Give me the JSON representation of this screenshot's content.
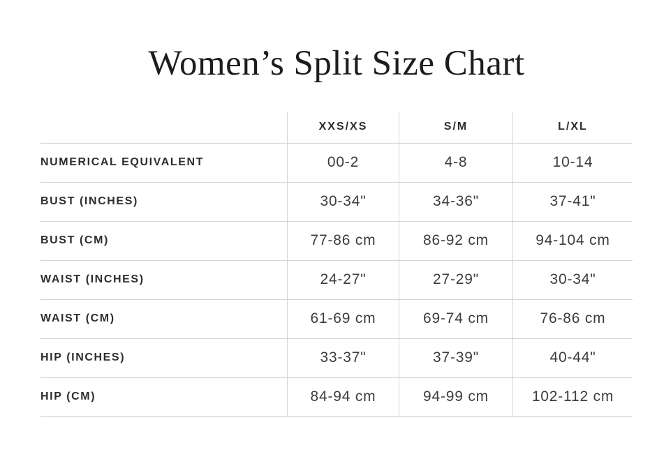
{
  "title": "Women’s Split Size Chart",
  "chart_data": {
    "type": "table",
    "title": "Women’s Split Size Chart",
    "column_headers": [
      "XXS/XS",
      "S/M",
      "L/XL"
    ],
    "row_labels": [
      "NUMERICAL EQUIVALENT",
      "BUST (INCHES)",
      "BUST (CM)",
      "WAIST (INCHES)",
      "WAIST (CM)",
      "HIP (INCHES)",
      "HIP (CM)"
    ],
    "rows": [
      [
        "00-2",
        "4-8",
        "10-14"
      ],
      [
        "30-34\"",
        "34-36\"",
        "37-41\""
      ],
      [
        "77-86 cm",
        "86-92 cm",
        "94-104 cm"
      ],
      [
        "24-27\"",
        "27-29\"",
        "30-34\""
      ],
      [
        "61-69 cm",
        "69-74 cm",
        "76-86 cm"
      ],
      [
        "33-37\"",
        "37-39\"",
        "40-44\""
      ],
      [
        "84-94 cm",
        "94-99 cm",
        "102-112 cm"
      ]
    ],
    "layout": {
      "grid": "horizontal row separators and vertical column separators, no outer top/left/right border",
      "header_position": "top",
      "label_column_position": "left"
    }
  },
  "colors": {
    "background": "#ffffff",
    "title_text": "#1d1d1d",
    "label_text": "#2d2d2d",
    "value_text": "#3d3d3d",
    "grid_line": "#d6d6d6"
  }
}
